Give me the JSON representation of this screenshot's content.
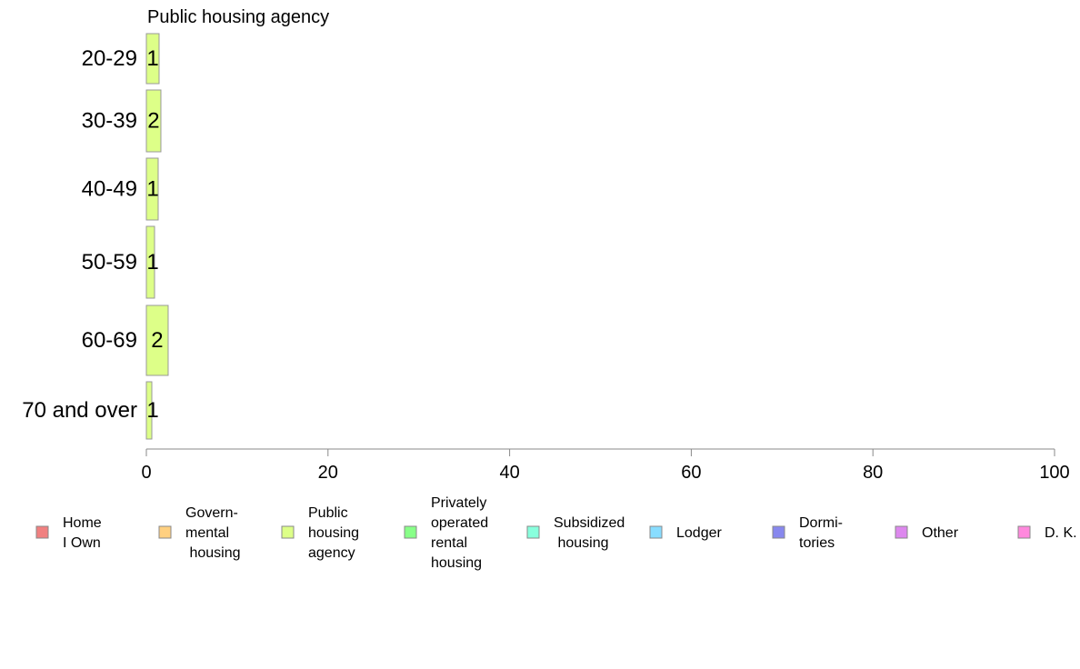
{
  "chart_data": {
    "type": "bar",
    "orientation": "horizontal",
    "title": "Public housing agency",
    "categories": [
      "20-29",
      "30-39",
      "40-49",
      "50-59",
      "60-69",
      "70 and over"
    ],
    "series": [
      {
        "name": "Public housing agency",
        "color": "#ddff88",
        "values": [
          1.4,
          1.6,
          1.3,
          0.9,
          2.4,
          0.6
        ],
        "labels": [
          "1",
          "2",
          "1",
          "1",
          "2",
          "1"
        ]
      }
    ],
    "xlim": [
      0,
      100
    ],
    "xticks": [
      "0",
      "20",
      "40",
      "60",
      "80",
      "100"
    ],
    "xlabel": "",
    "ylabel": "",
    "grid": false,
    "legend": {
      "placement": "bottom",
      "items": [
        {
          "lines": [
            "Home",
            "I Own"
          ],
          "color": "#f08080"
        },
        {
          "lines": [
            "Govern-",
            "mental",
            " housing"
          ],
          "color": "#ffd080"
        },
        {
          "lines": [
            "Public",
            "housing",
            "agency"
          ],
          "color": "#ddff88"
        },
        {
          "lines": [
            "Privately",
            "operated",
            "rental",
            "housing"
          ],
          "color": "#88ff88"
        },
        {
          "lines": [
            "Subsidized",
            " housing"
          ],
          "color": "#88ffdd"
        },
        {
          "lines": [
            "Lodger"
          ],
          "color": "#88ddff"
        },
        {
          "lines": [
            "Dormi-",
            "tories"
          ],
          "color": "#8888ee"
        },
        {
          "lines": [
            "Other"
          ],
          "color": "#dd88ee"
        },
        {
          "lines": [
            "D. K."
          ],
          "color": "#ff88dd"
        }
      ]
    }
  }
}
